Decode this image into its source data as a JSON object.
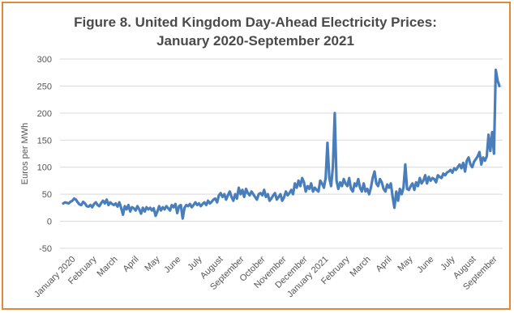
{
  "chart_data": {
    "type": "line",
    "title_line1": "Figure 8. United Kingdom Day-Ahead Electricity Prices:",
    "title_line2": "January 2020-September 2021",
    "xlabel": "",
    "ylabel": "Euros per MWh",
    "ylim": [
      -50,
      300
    ],
    "yticks": [
      -50,
      0,
      50,
      100,
      150,
      200,
      250,
      300
    ],
    "grid": "horizontal",
    "legend": "none",
    "color": "#4a7ebb",
    "month_labels": [
      "January 2020",
      "February",
      "March",
      "April",
      "May",
      "June",
      "July",
      "August",
      "September",
      "October",
      "November",
      "December",
      "January 2021",
      "February",
      "March",
      "April",
      "May",
      "June",
      "July",
      "August",
      "September"
    ],
    "series": [
      {
        "values": [
          33,
          35,
          34,
          33,
          36,
          38,
          42,
          40,
          35,
          31,
          30,
          36,
          33,
          28,
          27,
          30,
          26,
          32,
          35,
          30,
          28,
          34,
          38,
          33,
          40,
          30,
          35,
          32,
          30,
          33,
          27,
          35,
          25,
          12,
          28,
          22,
          30,
          18,
          26,
          24,
          20,
          28,
          22,
          14,
          25,
          18,
          26,
          22,
          25,
          20,
          24,
          10,
          18,
          28,
          20,
          26,
          22,
          28,
          24,
          20,
          30,
          26,
          32,
          15,
          28,
          30,
          5,
          25,
          30,
          28,
          32,
          26,
          30,
          35,
          30,
          33,
          28,
          32,
          35,
          30,
          38,
          33,
          36,
          40,
          42,
          35,
          48,
          52,
          45,
          50,
          40,
          48,
          55,
          45,
          38,
          50,
          42,
          62,
          50,
          58,
          45,
          60,
          52,
          48,
          55,
          50,
          45,
          40,
          50,
          52,
          48,
          58,
          45,
          50,
          38,
          42,
          48,
          52,
          40,
          45,
          50,
          38,
          44,
          55,
          48,
          52,
          58,
          50,
          70,
          62,
          75,
          65,
          80,
          72,
          55,
          65,
          60,
          70,
          55,
          62,
          58,
          55,
          75,
          70,
          62,
          80,
          145,
          80,
          65,
          100,
          200,
          75,
          60,
          72,
          65,
          78,
          70,
          65,
          80,
          60,
          55,
          70,
          65,
          78,
          62,
          55,
          70,
          55,
          60,
          50,
          62,
          80,
          92,
          70,
          65,
          78,
          72,
          60,
          55,
          68,
          62,
          70,
          45,
          25,
          55,
          38,
          60,
          50,
          62,
          105,
          60,
          58,
          65,
          70,
          58,
          72,
          65,
          80,
          70,
          75,
          85,
          70,
          82,
          75,
          80,
          78,
          72,
          85,
          82,
          80,
          88,
          85,
          90,
          92,
          95,
          90,
          98,
          95,
          100,
          105,
          98,
          108,
          92,
          112,
          118,
          105,
          100,
          110,
          115,
          120,
          128,
          105,
          118,
          112,
          120,
          160,
          130,
          165,
          125,
          280,
          260,
          250
        ]
      }
    ]
  }
}
